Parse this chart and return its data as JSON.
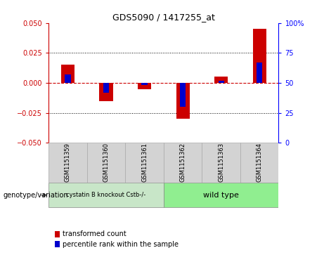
{
  "title": "GDS5090 / 1417255_at",
  "samples": [
    "GSM1151359",
    "GSM1151360",
    "GSM1151361",
    "GSM1151362",
    "GSM1151363",
    "GSM1151364"
  ],
  "red_values": [
    0.015,
    -0.015,
    -0.005,
    -0.03,
    0.005,
    0.045
  ],
  "blue_pct": [
    57,
    42,
    48,
    30,
    52,
    67
  ],
  "ylim_left": [
    -0.05,
    0.05
  ],
  "ylim_right": [
    0,
    100
  ],
  "yticks_left": [
    -0.05,
    -0.025,
    0,
    0.025,
    0.05
  ],
  "yticks_right": [
    0,
    25,
    50,
    75,
    100
  ],
  "group1_color": "#c8e6c8",
  "group2_color": "#90EE90",
  "group1_label": "cystatin B knockout Cstb-/-",
  "group2_label": "wild type",
  "sample_bg_color": "#d3d3d3",
  "red_color": "#CC0000",
  "blue_color": "#0000CC",
  "zero_line_color": "#CC0000",
  "legend_red": "transformed count",
  "legend_blue": "percentile rank within the sample",
  "genotype_label": "genotype/variation"
}
